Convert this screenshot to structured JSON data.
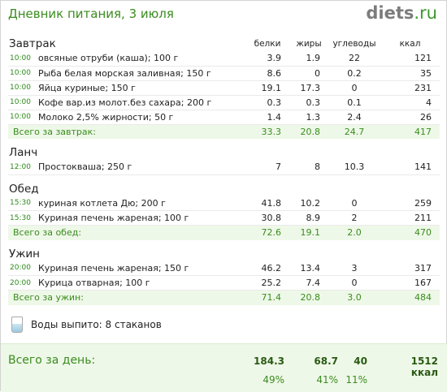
{
  "header": {
    "title": "Дневник питания, 3 июля",
    "logo_main": "diets",
    "logo_ru": ".ru"
  },
  "columns": {
    "protein": "белки",
    "fat": "жиры",
    "carbs": "углеводы",
    "kcal": "ккал"
  },
  "meals": [
    {
      "title": "Завтрак",
      "items": [
        {
          "time": "10:00",
          "food": "овсяные отруби (каша); 100 г",
          "p": "3.9",
          "f": "1.9",
          "c": "22",
          "k": "121"
        },
        {
          "time": "10:00",
          "food": "Рыба белая морская заливная; 150 г",
          "p": "8.6",
          "f": "0",
          "c": "0.2",
          "k": "35"
        },
        {
          "time": "10:00",
          "food": "Яйца куриные; 150 г",
          "p": "19.1",
          "f": "17.3",
          "c": "0",
          "k": "231"
        },
        {
          "time": "10:00",
          "food": "Кофе вар.из молот.без сахара; 200 г",
          "p": "0.3",
          "f": "0.3",
          "c": "0.1",
          "k": "4"
        },
        {
          "time": "10:00",
          "food": "Молоко 2,5% жирности; 50 г",
          "p": "1.4",
          "f": "1.3",
          "c": "2.4",
          "k": "26"
        }
      ],
      "total": {
        "label": "Всего за завтрак:",
        "p": "33.3",
        "f": "20.8",
        "c": "24.7",
        "k": "417"
      }
    },
    {
      "title": "Ланч",
      "items": [
        {
          "time": "12:00",
          "food": "Простокваша; 250 г",
          "p": "7",
          "f": "8",
          "c": "10.3",
          "k": "141"
        }
      ],
      "total": null
    },
    {
      "title": "Обед",
      "items": [
        {
          "time": "15:30",
          "food": "куриная котлета Дю; 200 г",
          "p": "41.8",
          "f": "10.2",
          "c": "0",
          "k": "259"
        },
        {
          "time": "15:30",
          "food": "Куриная печень жареная; 100 г",
          "p": "30.8",
          "f": "8.9",
          "c": "2",
          "k": "211"
        }
      ],
      "total": {
        "label": "Всего за обед:",
        "p": "72.6",
        "f": "19.1",
        "c": "2.0",
        "k": "470"
      }
    },
    {
      "title": "Ужин",
      "items": [
        {
          "time": "20:00",
          "food": "Куриная печень жареная; 150 г",
          "p": "46.2",
          "f": "13.4",
          "c": "3",
          "k": "317"
        },
        {
          "time": "20:00",
          "food": "Курица отварная; 100 г",
          "p": "25.2",
          "f": "7.4",
          "c": "0",
          "k": "167"
        }
      ],
      "total": {
        "label": "Всего за ужин:",
        "p": "71.4",
        "f": "20.8",
        "c": "3.0",
        "k": "484"
      }
    }
  ],
  "water": {
    "text": "Воды выпито: 8 стаканов",
    "icon": "water-glass-icon"
  },
  "day_total": {
    "label": "Всего за день:",
    "p": "184.3",
    "f": "68.7",
    "c": "40",
    "k": "1512 ккал",
    "p_pct": "49%",
    "f_pct": "41%",
    "c_pct": "11%"
  }
}
